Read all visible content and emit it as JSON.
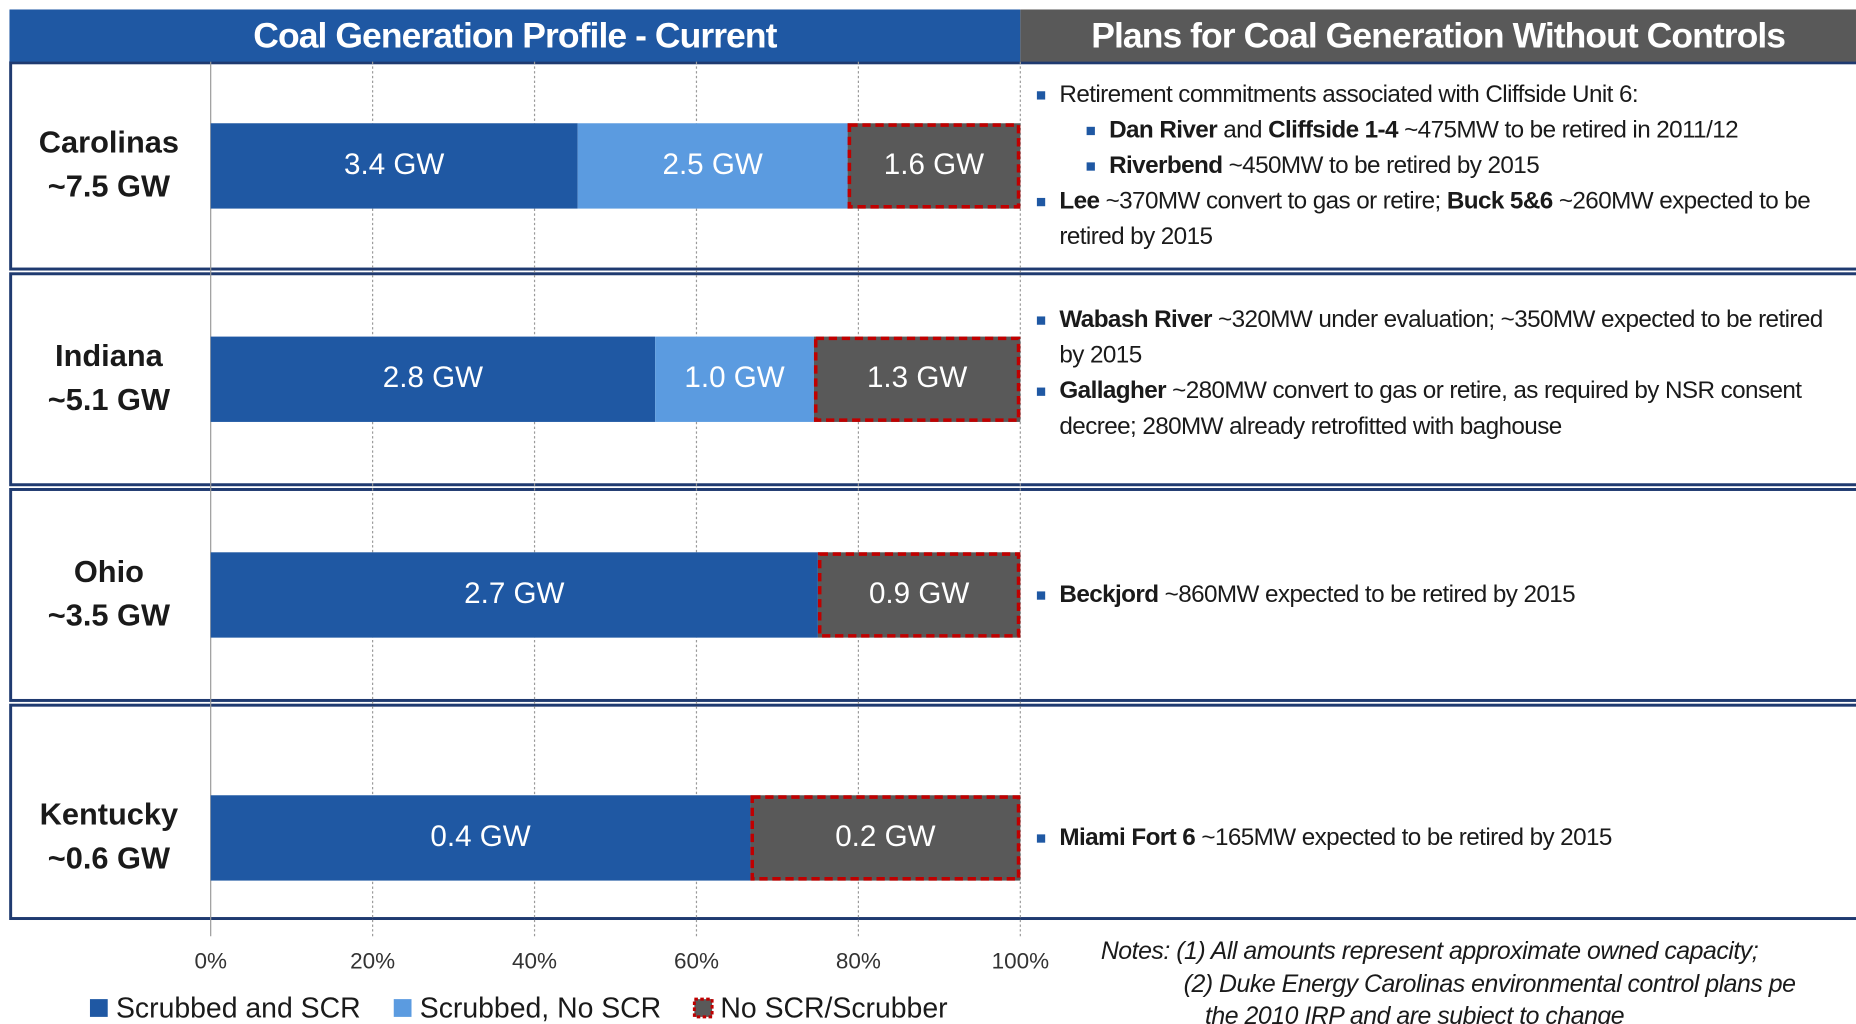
{
  "chart_data": {
    "type": "bar",
    "orientation": "horizontal",
    "stacking": "percent",
    "title": "Coal Generation Profile - Current",
    "categories": [
      "Carolinas",
      "Indiana",
      "Ohio",
      "Kentucky"
    ],
    "category_subtitles": [
      "~7.5 GW",
      "~5.1 GW",
      "~3.5 GW",
      "~0.6 GW"
    ],
    "series": [
      {
        "name": "Scrubbed and SCR",
        "color": "#1f58a3",
        "values": [
          3.4,
          2.8,
          2.7,
          0.4
        ],
        "value_labels": [
          "3.4 GW",
          "2.8 GW",
          "2.7 GW",
          "0.4 GW"
        ]
      },
      {
        "name": "Scrubbed, No SCR",
        "color": "#5b9be0",
        "values": [
          2.5,
          1.0,
          null,
          null
        ],
        "value_labels": [
          "2.5 GW",
          "1.0 GW",
          null,
          null
        ]
      },
      {
        "name": "No SCR/Scrubber",
        "color": "#595959",
        "edgecolor": "#c00000",
        "values": [
          1.6,
          1.3,
          0.9,
          0.2
        ],
        "value_labels": [
          "1.6 GW",
          "1.3 GW",
          "0.9 GW",
          "0.2 GW"
        ]
      }
    ],
    "xlim": [
      0,
      100
    ],
    "xticks": [
      {
        "value": 0,
        "label": "0%"
      },
      {
        "value": 20,
        "label": "20%"
      },
      {
        "value": 40,
        "label": "40%"
      },
      {
        "value": 60,
        "label": "60%"
      },
      {
        "value": 80,
        "label": "80%"
      },
      {
        "value": 100,
        "label": "100%"
      }
    ],
    "grid": true,
    "legend": "bottom"
  },
  "plans": {
    "title": "Plans for Coal Generation Without Controls",
    "rows": [
      {
        "bullets": [
          {
            "level": 1,
            "runs": [
              {
                "text": "Retirement commitments associated with Cliffside Unit 6:"
              }
            ]
          },
          {
            "level": 2,
            "runs": [
              {
                "text": "Dan River",
                "bold": true
              },
              {
                "text": " and "
              },
              {
                "text": "Cliffside 1-4",
                "bold": true
              },
              {
                "text": " ~475MW to be retired in 2011/12"
              }
            ]
          },
          {
            "level": 2,
            "runs": [
              {
                "text": "Riverbend",
                "bold": true
              },
              {
                "text": " ~450MW to be retired by 2015"
              }
            ]
          },
          {
            "level": 1,
            "runs": [
              {
                "text": "Lee",
                "bold": true
              },
              {
                "text": " ~370MW convert to gas or retire; "
              },
              {
                "text": "Buck 5&6",
                "bold": true
              },
              {
                "text": " ~260MW expected to be retired by 2015"
              }
            ]
          }
        ]
      },
      {
        "bullets": [
          {
            "level": 1,
            "runs": [
              {
                "text": "Wabash River",
                "bold": true
              },
              {
                "text": " ~320MW under evaluation; ~350MW expected to be retired by 2015"
              }
            ]
          },
          {
            "level": 1,
            "runs": [
              {
                "text": "Gallagher",
                "bold": true
              },
              {
                "text": " ~280MW convert to gas or retire, as required by NSR consent decree; 280MW already retrofitted with baghouse"
              }
            ]
          }
        ]
      },
      {
        "bullets": [
          {
            "level": 1,
            "runs": [
              {
                "text": "Beckjord",
                "bold": true
              },
              {
                "text": " ~860MW expected to be retired by 2015"
              }
            ]
          }
        ]
      },
      {
        "bullets": [
          {
            "level": 1,
            "runs": [
              {
                "text": "Miami Fort 6",
                "bold": true
              },
              {
                "text": " ~165MW expected to be retired by 2015"
              }
            ]
          }
        ]
      }
    ]
  },
  "notes": [
    "Notes: (1) All amounts represent approximate owned capacity;",
    "(2) Duke Energy Carolinas environmental control plans pe",
    "the 2010 IRP and are subject to change"
  ]
}
